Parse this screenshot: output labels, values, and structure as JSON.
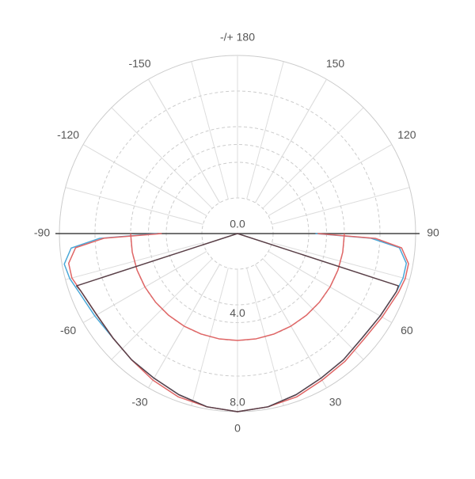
{
  "chart_data": {
    "type": "polar",
    "ylim": [
      0,
      8
    ],
    "yticks": [
      {
        "value": 0,
        "label": "0.0"
      },
      {
        "value": 4,
        "label": "4.0"
      },
      {
        "value": 8,
        "label": "8.0"
      }
    ],
    "xticks": [
      0,
      30,
      60,
      90,
      120,
      150,
      {
        "value": 180,
        "label": "-/+ 180"
      },
      -150,
      -120,
      -90,
      -60,
      -30
    ],
    "grid": true,
    "series": [
      {
        "color": "#4aa8d8",
        "x": [
          -90,
          -88,
          -85,
          -80,
          -75,
          -70,
          -60,
          -50,
          -40,
          -30,
          -20,
          -10,
          0,
          10,
          20,
          30,
          40,
          50,
          60,
          70,
          75,
          80,
          85,
          88,
          90
        ],
        "values": [
          3.6,
          6.2,
          7.5,
          7.9,
          7.8,
          7.6,
          7.4,
          7.3,
          7.4,
          7.5,
          7.7,
          7.9,
          8.0,
          7.9,
          7.7,
          7.5,
          7.4,
          7.3,
          7.4,
          7.6,
          7.7,
          7.7,
          7.3,
          6.0,
          3.5
        ]
      },
      {
        "color": "#e06666",
        "x": [
          -90,
          -88,
          -85,
          -80,
          -75,
          -70,
          -60,
          -50,
          -40,
          -30,
          -20,
          -10,
          0,
          10,
          20,
          30,
          40,
          50,
          60,
          70,
          75,
          80,
          85,
          88,
          90
        ],
        "values": [
          3.4,
          6.0,
          7.3,
          7.7,
          7.7,
          7.5,
          7.3,
          7.3,
          7.4,
          7.6,
          7.8,
          7.9,
          8.0,
          7.9,
          7.8,
          7.6,
          7.5,
          7.4,
          7.5,
          7.7,
          7.8,
          7.8,
          7.4,
          6.2,
          3.6
        ]
      },
      {
        "color": "#e06666",
        "x": [
          -90,
          -80,
          -70,
          -60,
          -50,
          -40,
          -30,
          -20,
          -10,
          0,
          10,
          20,
          30,
          40,
          50,
          60,
          70,
          80,
          90
        ],
        "values": [
          4.8,
          4.8,
          4.8,
          4.8,
          4.8,
          4.8,
          4.8,
          4.8,
          4.8,
          4.8,
          4.8,
          4.8,
          4.8,
          4.8,
          4.8,
          4.8,
          4.8,
          4.8,
          4.8
        ]
      },
      {
        "color": "#5a4048",
        "x": [
          -72,
          -72,
          -70,
          -60,
          -50,
          -40,
          -30,
          -20,
          -10,
          0,
          10,
          20,
          30,
          40,
          50,
          60,
          70,
          72,
          72
        ],
        "values": [
          0,
          7.6,
          7.5,
          7.3,
          7.3,
          7.4,
          7.5,
          7.7,
          7.9,
          8.0,
          7.9,
          7.7,
          7.5,
          7.4,
          7.3,
          7.4,
          7.6,
          7.6,
          0
        ]
      }
    ]
  }
}
